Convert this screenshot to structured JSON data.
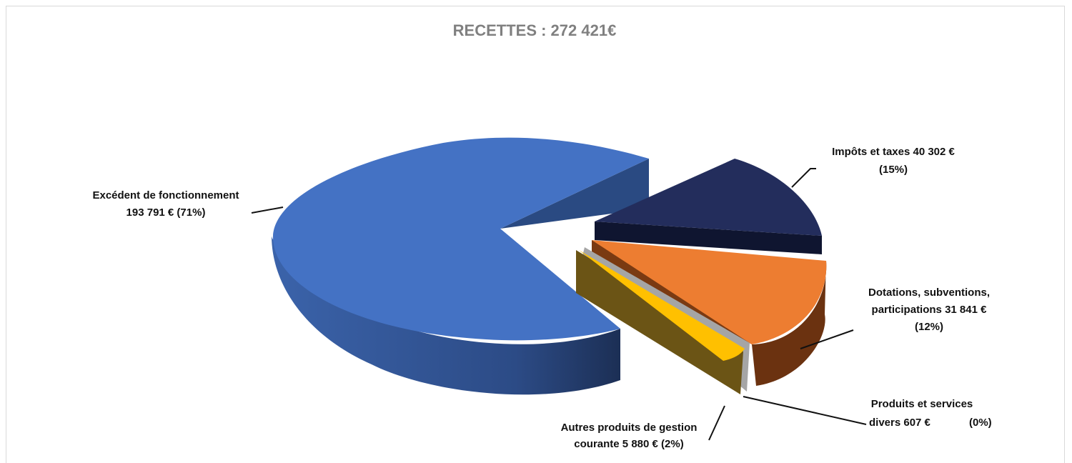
{
  "chart_data": {
    "type": "pie",
    "title": "RECETTES : 272 421€",
    "series": [
      {
        "name": "",
        "slices": [
          {
            "label_line1": "Excédent de fonctionnement",
            "label_line2": "193 791 € (71%)",
            "label_line3": "",
            "value": 193791,
            "percent": 71,
            "color": "#4472C4"
          },
          {
            "label_line1": "Impôts et taxes 40 302 €",
            "label_line2": "(15%)",
            "label_line3": "",
            "value": 40302,
            "percent": 15,
            "color": "#232D5C"
          },
          {
            "label_line1": "Dotations, subventions,",
            "label_line2": "participations 31 841 €",
            "label_line3": "(12%)",
            "value": 31841,
            "percent": 12,
            "color": "#ED7D31"
          },
          {
            "label_line1": "Produits et services",
            "label_line2": "divers  607 €",
            "label_line3": "(0%)",
            "value": 607,
            "percent": 0,
            "color": "#A5A5A5"
          },
          {
            "label_line1": "Autres produits de gestion",
            "label_line2": "courante 5 880 € (2%)",
            "label_line3": "",
            "value": 5880,
            "percent": 2,
            "color": "#FFC000"
          }
        ]
      }
    ],
    "legend": "none"
  }
}
